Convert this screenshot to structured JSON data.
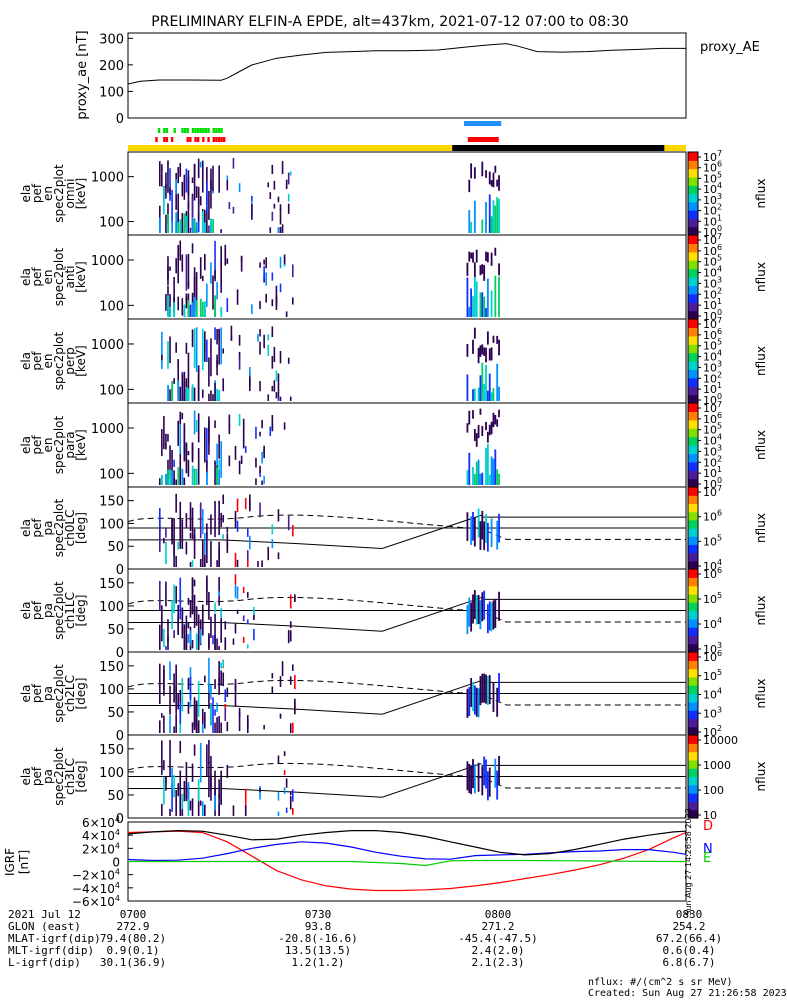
{
  "title": "PRELIMINARY ELFIN-A EPDE, alt=437km, 2021-07-12 07:00 to 08:30",
  "chart_data": [
    {
      "type": "line",
      "panel": "proxy_ae",
      "ylabel": "proxy_ae [nT]",
      "legend": "proxy_AE",
      "ylim": [
        0,
        320
      ],
      "yticks": [
        "0",
        "100",
        "200",
        "300"
      ],
      "x_minutes": [
        0,
        2,
        5,
        10,
        15,
        16,
        18,
        20,
        24,
        28,
        32,
        36,
        40,
        45,
        50,
        55,
        58,
        61,
        63,
        66,
        70,
        74,
        78,
        82,
        86,
        90
      ],
      "values": [
        128,
        138,
        143,
        143,
        142,
        150,
        175,
        200,
        225,
        237,
        247,
        250,
        253,
        253,
        256,
        268,
        275,
        280,
        270,
        250,
        248,
        250,
        255,
        258,
        262,
        262
      ]
    },
    {
      "type": "heatmap",
      "panel": "omni",
      "ylabel": [
        "ela",
        "pef",
        "en",
        "spec2plot",
        "omni",
        "[keV]"
      ],
      "yticks": [
        "100",
        "1000"
      ],
      "colorbar": {
        "label": "nflux",
        "ticks": [
          "10",
          "10",
          "10",
          "10",
          "10",
          "10",
          "10",
          "10"
        ],
        "exps": [
          "0",
          "1",
          "2",
          "3",
          "4",
          "5",
          "6",
          "7"
        ]
      }
    },
    {
      "type": "heatmap",
      "panel": "anti",
      "ylabel": [
        "ela",
        "pef",
        "en",
        "spec2plot",
        "anti",
        "[keV]"
      ],
      "yticks": [
        "100",
        "1000"
      ],
      "colorbar": {
        "label": "nflux",
        "ticks": [
          "10",
          "10",
          "10",
          "10",
          "10",
          "10",
          "10",
          "10"
        ],
        "exps": [
          "0",
          "1",
          "2",
          "3",
          "4",
          "5",
          "6",
          "7"
        ]
      }
    },
    {
      "type": "heatmap",
      "panel": "perp",
      "ylabel": [
        "ela",
        "pef",
        "en",
        "spec2plot",
        "perp",
        "[keV]"
      ],
      "yticks": [
        "100",
        "1000"
      ],
      "colorbar": {
        "label": "nflux",
        "ticks": [
          "10",
          "10",
          "10",
          "10",
          "10",
          "10",
          "10",
          "10"
        ],
        "exps": [
          "0",
          "1",
          "2",
          "3",
          "4",
          "5",
          "6",
          "7"
        ]
      }
    },
    {
      "type": "heatmap",
      "panel": "para",
      "ylabel": [
        "ela",
        "pef",
        "en",
        "spec2plot",
        "para",
        "[keV]"
      ],
      "yticks": [
        "100",
        "1000"
      ],
      "colorbar": {
        "label": "nflux",
        "ticks": [
          "10",
          "10",
          "10",
          "10",
          "10",
          "10",
          "10",
          "10"
        ],
        "exps": [
          "0",
          "1",
          "2",
          "3",
          "4",
          "5",
          "6",
          "7"
        ]
      }
    },
    {
      "type": "heatmap",
      "panel": "ch0LC",
      "ylabel": [
        "ela",
        "pef",
        "pa",
        "spec2plot",
        "ch0LC",
        "[deg]"
      ],
      "yticks": [
        "0",
        "50",
        "100",
        "150"
      ],
      "colorbar": {
        "label": "nflux",
        "ticks": [
          "10",
          "10",
          "10",
          "10"
        ],
        "exps": [
          "4",
          "5",
          "6",
          "7"
        ]
      }
    },
    {
      "type": "heatmap",
      "panel": "ch1LC",
      "ylabel": [
        "ela",
        "pef",
        "pa",
        "spec2plot",
        "ch1LC",
        "[deg]"
      ],
      "yticks": [
        "0",
        "50",
        "100",
        "150"
      ],
      "colorbar": {
        "label": "nflux",
        "ticks": [
          "10",
          "10",
          "10",
          "10"
        ],
        "exps": [
          "3",
          "4",
          "5",
          "6"
        ]
      }
    },
    {
      "type": "heatmap",
      "panel": "ch2LC",
      "ylabel": [
        "ela",
        "pef",
        "pa",
        "spec2plot",
        "ch2LC",
        "[deg]"
      ],
      "yticks": [
        "0",
        "50",
        "100",
        "150"
      ],
      "colorbar": {
        "label": "nflux",
        "ticks": [
          "10",
          "10",
          "10",
          "10",
          "10"
        ],
        "exps": [
          "2",
          "3",
          "4",
          "5",
          "6"
        ]
      }
    },
    {
      "type": "heatmap",
      "panel": "ch3LC",
      "ylabel": [
        "ela",
        "pef",
        "pa",
        "spec2plot",
        "ch3LC",
        "[deg]"
      ],
      "yticks": [
        "0",
        "50",
        "100",
        "150"
      ],
      "colorbar": {
        "label": "nflux",
        "ticks": [
          "10",
          "100",
          "1000",
          "10000"
        ]
      }
    },
    {
      "type": "line",
      "panel": "IGRF",
      "ylabel": "IGRF [nT]",
      "ylim": [
        -60000,
        60000
      ],
      "ytick_mant": [
        "−6×10",
        "−4×10",
        "−2×10",
        "0",
        "2×10",
        "4×10",
        "6×10"
      ],
      "ytick_exp": [
        "4",
        "4",
        "4",
        "",
        "4",
        "4",
        "4"
      ],
      "x_minutes": [
        0,
        4,
        8,
        12,
        16,
        20,
        24,
        28,
        32,
        36,
        40,
        44,
        48,
        52,
        56,
        60,
        64,
        68,
        72,
        76,
        80,
        84,
        88,
        90
      ],
      "series": [
        {
          "name": "D",
          "color": "#ff0000",
          "values": [
            44000,
            45000,
            46000,
            44000,
            30000,
            8000,
            -14000,
            -28000,
            -37000,
            -42000,
            -44000,
            -44000,
            -43000,
            -41000,
            -37000,
            -32000,
            -26000,
            -20000,
            -13000,
            -5000,
            5000,
            18000,
            36000,
            44000
          ]
        },
        {
          "name": "N",
          "color": "#0000ff",
          "values": [
            3000,
            1500,
            2000,
            5000,
            12000,
            20000,
            26000,
            30000,
            28000,
            22000,
            14000,
            8000,
            4000,
            3500,
            9000,
            10000,
            11000,
            13000,
            15000,
            16000,
            18000,
            18000,
            14000,
            11000
          ]
        },
        {
          "name": "E",
          "color": "#00cc00",
          "values": [
            0,
            0,
            0,
            0,
            0,
            0,
            0,
            0,
            0,
            0,
            -1500,
            -3000,
            -6000,
            1000,
            1500,
            1500,
            1500,
            1200,
            1000,
            800,
            500,
            200,
            0,
            0
          ]
        },
        {
          "name": "",
          "color": "#000000",
          "values": [
            42000,
            45000,
            47000,
            46000,
            40000,
            33000,
            34000,
            40000,
            44000,
            47000,
            47000,
            44000,
            38000,
            30000,
            22000,
            14000,
            10000,
            12000,
            18000,
            26000,
            34000,
            40000,
            45000,
            46000
          ]
        }
      ],
      "legend": [
        "D",
        "N",
        "E"
      ]
    }
  ],
  "footer": {
    "rows": [
      {
        "label": "2021 Jul 12",
        "values": [
          "0700",
          "0730",
          "0800",
          "0830"
        ]
      },
      {
        "label": "GLON (east)",
        "values": [
          "272.9",
          "93.8",
          "271.2",
          "254.2"
        ]
      },
      {
        "label": "MLAT-igrf(dip)",
        "values": [
          "79.4(80.2)",
          "-20.8(-16.6)",
          "-45.4(-47.5)",
          "67.2(66.4)"
        ]
      },
      {
        "label": "MLT-igrf(dip)",
        "values": [
          "0.9(0.1)",
          "13.5(13.5)",
          "2.4(2.0)",
          "0.6(0.4)"
        ]
      },
      {
        "label": "L-igrf(dip)",
        "values": [
          "30.1(36.9)",
          "1.2(1.2)",
          "2.1(2.3)",
          "6.8(6.7)"
        ]
      }
    ],
    "units_note": "nflux: #/(cm^2 s sr MeV)",
    "created": "Created: Sun Aug 27 21:26:58 2023",
    "vertical_stamp": "Sun Aug 27 14:26:58 2023"
  },
  "colors": {
    "science_zone_bar": "#ffd700",
    "orbit_dark_bar": "#000000",
    "green_marks": "#00dd00",
    "red_marks": "#ff0000",
    "blue_marks": "#1e90ff"
  }
}
